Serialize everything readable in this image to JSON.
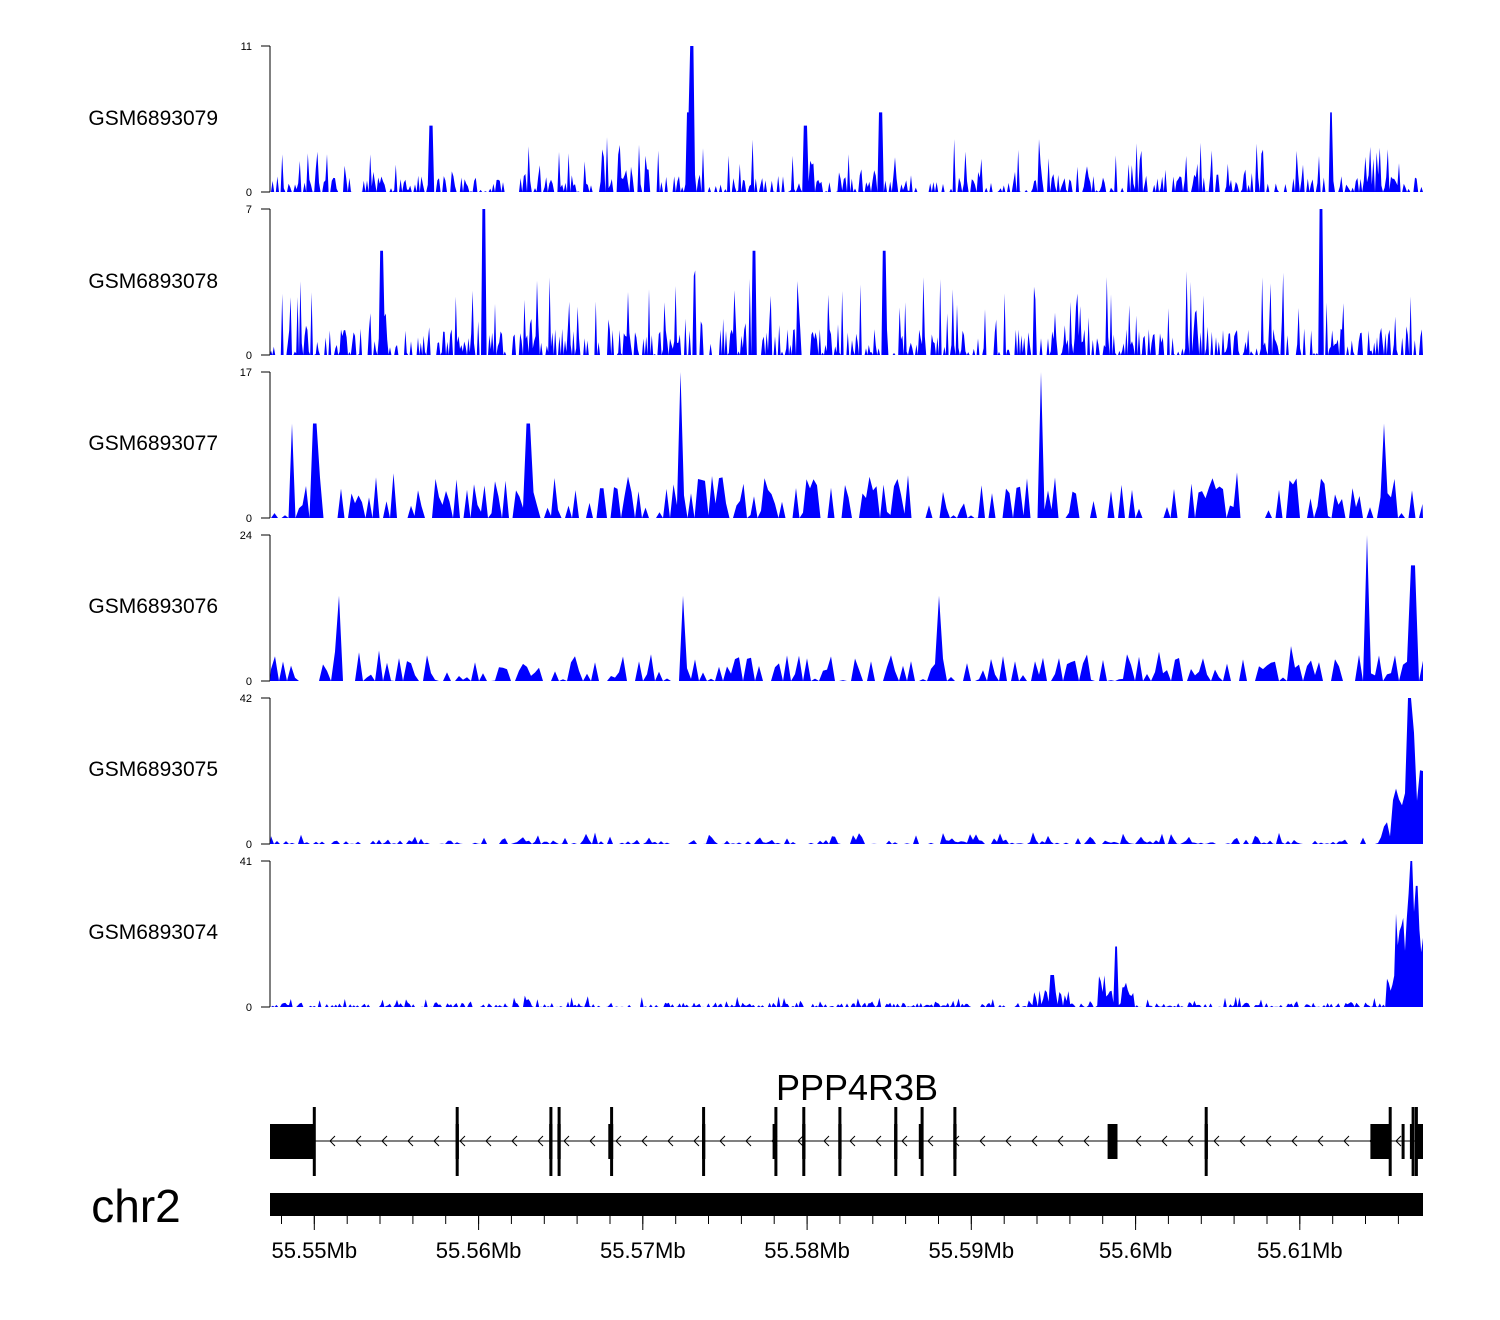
{
  "chart_data": {
    "type": "area",
    "title": "",
    "xlabel": "",
    "ylabel": "",
    "fill_color": "#0000ff",
    "x_range_mb": [
      55.5473,
      55.6175
    ],
    "x_ticks": [
      {
        "value": 55.55,
        "label": "55.55Mb"
      },
      {
        "value": 55.56,
        "label": "55.56Mb"
      },
      {
        "value": 55.57,
        "label": "55.57Mb"
      },
      {
        "value": 55.58,
        "label": "55.58Mb"
      },
      {
        "value": 55.59,
        "label": "55.59Mb"
      },
      {
        "value": 55.6,
        "label": "55.6Mb"
      },
      {
        "value": 55.61,
        "label": "55.61Mb"
      }
    ],
    "chromosome": "chr2",
    "gene": {
      "name": "PPP4R3B",
      "strand": "-",
      "exons_mb": [
        [
          55.5473,
          55.55
        ],
        [
          55.5586,
          55.5588
        ],
        [
          55.5643,
          55.5645
        ],
        [
          55.5648,
          55.565
        ],
        [
          55.5679,
          55.5682
        ],
        [
          55.5736,
          55.5738
        ],
        [
          55.5779,
          55.578
        ],
        [
          55.5797,
          55.5799
        ],
        [
          55.5819,
          55.5821
        ],
        [
          55.5853,
          55.5855
        ],
        [
          55.5868,
          55.587
        ],
        [
          55.5889,
          55.5891
        ],
        [
          55.5983,
          55.5989
        ],
        [
          55.6042,
          55.6044
        ],
        [
          55.6143,
          55.6155
        ],
        [
          55.6162,
          55.6163
        ],
        [
          55.6167,
          55.6169
        ],
        [
          55.6171,
          55.6175
        ]
      ],
      "tall_lines_mb": [
        55.55,
        55.5587,
        55.5644,
        55.5649,
        55.5681,
        55.5737,
        55.5781,
        55.5798,
        55.582,
        55.5854,
        55.587,
        55.589,
        55.6043,
        55.6155,
        55.6169,
        55.6171
      ]
    },
    "tracks": [
      {
        "name": "GSM6893079",
        "ymax": 11,
        "ymin": 0,
        "peaks": [
          [
            55.573,
            11
          ],
          [
            55.5728,
            6
          ],
          [
            55.5571,
            5
          ],
          [
            55.5845,
            6
          ],
          [
            55.5799,
            5
          ],
          [
            55.6119,
            6
          ]
        ]
      },
      {
        "name": "GSM6893078",
        "ymax": 7,
        "ymin": 0,
        "peaks": [
          [
            55.5603,
            7
          ],
          [
            55.6113,
            7
          ],
          [
            55.5541,
            5
          ],
          [
            55.5768,
            5
          ],
          [
            55.5847,
            5
          ]
        ]
      },
      {
        "name": "GSM6893077",
        "ymax": 17,
        "ymin": 0,
        "peaks": [
          [
            55.5723,
            17
          ],
          [
            55.5942,
            17
          ],
          [
            55.5487,
            11
          ],
          [
            55.55,
            11
          ],
          [
            55.563,
            11
          ],
          [
            55.6152,
            11
          ]
        ]
      },
      {
        "name": "GSM6893076",
        "ymax": 24,
        "ymin": 0,
        "peaks": [
          [
            55.614,
            24
          ],
          [
            55.5515,
            14
          ],
          [
            55.588,
            14
          ],
          [
            55.6169,
            19
          ],
          [
            55.5724,
            14
          ]
        ]
      },
      {
        "name": "GSM6893075",
        "ymax": 42,
        "ymin": 0,
        "peaks": [
          [
            55.6167,
            42
          ],
          [
            55.6169,
            32
          ],
          [
            55.616,
            12
          ]
        ]
      },
      {
        "name": "GSM6893074",
        "ymax": 41,
        "ymin": 0,
        "peaks": [
          [
            55.6168,
            41
          ],
          [
            55.6171,
            34
          ],
          [
            55.5988,
            17
          ],
          [
            55.5949,
            9
          ]
        ]
      }
    ]
  }
}
